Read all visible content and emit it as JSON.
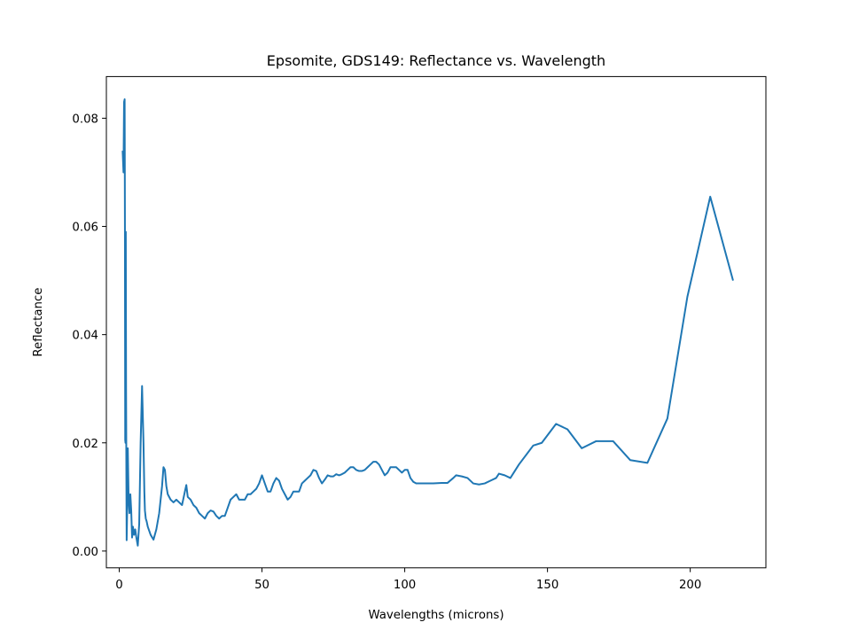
{
  "chart_data": {
    "type": "line",
    "title": "Epsomite, GDS149: Reflectance vs. Wavelength",
    "xlabel": "Wavelengths (microns)",
    "ylabel": "Reflectance",
    "xlim": [
      -4.5,
      226.5
    ],
    "ylim": [
      -0.0031,
      0.0877
    ],
    "xticks": [
      0,
      50,
      100,
      150,
      200
    ],
    "xtick_labels": [
      "0",
      "50",
      "100",
      "150",
      "200"
    ],
    "yticks": [
      0.0,
      0.02,
      0.04,
      0.06,
      0.08
    ],
    "ytick_labels": [
      "0.00",
      "0.02",
      "0.04",
      "0.06",
      "0.08"
    ],
    "grid": false,
    "legend": "none",
    "series": [
      {
        "color": "#1f77b4",
        "x": [
          1.2,
          1.5,
          1.7,
          1.9,
          2.0,
          2.1,
          2.2,
          2.3,
          2.4,
          2.5,
          2.6,
          2.8,
          3.0,
          3.3,
          3.6,
          3.9,
          4.2,
          4.5,
          4.8,
          5.2,
          5.6,
          6.0,
          6.5,
          7.0,
          7.5,
          8.0,
          8.5,
          8.8,
          9.0,
          9.3,
          9.6,
          10.0,
          11.0,
          12.0,
          13.0,
          14.0,
          15.0,
          15.5,
          16.0,
          16.5,
          17.0,
          18.0,
          19.0,
          20.0,
          21.0,
          22.0,
          23.0,
          23.5,
          24.0,
          25.0,
          26.0,
          27.0,
          28.0,
          29.0,
          30.0,
          31.0,
          32.0,
          33.0,
          34.0,
          35.0,
          36.0,
          37.0,
          38.0,
          39.0,
          40.0,
          41.0,
          42.0,
          43.0,
          44.0,
          45.0,
          46.0,
          47.0,
          48.0,
          49.0,
          50.0,
          51.0,
          52.0,
          53.0,
          54.0,
          55.0,
          56.0,
          57.0,
          58.0,
          59.0,
          60.0,
          61.0,
          62.0,
          63.0,
          64.0,
          65.0,
          66.0,
          67.0,
          68.0,
          69.0,
          70.0,
          71.0,
          72.0,
          73.0,
          74.0,
          75.0,
          76.0,
          77.0,
          78.0,
          79.0,
          80.0,
          81.0,
          82.0,
          83.0,
          84.0,
          85.0,
          86.0,
          87.0,
          88.0,
          89.0,
          90.0,
          91.0,
          92.0,
          93.0,
          94.0,
          95.0,
          96.0,
          97.0,
          98.0,
          99.0,
          100.0,
          101.0,
          102.0,
          103.0,
          104.0,
          105.0,
          107.0,
          110.0,
          113.0,
          115.0,
          117.0,
          118.0,
          120.0,
          122.0,
          124.0,
          126.0,
          128.0,
          130.0,
          132.0,
          133.0,
          135.0,
          137.0,
          140.0,
          145.0,
          148.0,
          153.0,
          157.0,
          162.0,
          167.0,
          173.0,
          179.0,
          185.0,
          192.0,
          199.0,
          207.0,
          215.0
        ],
        "y": [
          0.074,
          0.07,
          0.083,
          0.0835,
          0.06,
          0.0205,
          0.02,
          0.059,
          0.03,
          0.015,
          0.002,
          0.008,
          0.019,
          0.0095,
          0.007,
          0.0105,
          0.0075,
          0.0025,
          0.0045,
          0.003,
          0.004,
          0.0025,
          0.001,
          0.005,
          0.02,
          0.0305,
          0.02,
          0.011,
          0.0075,
          0.006,
          0.0055,
          0.0045,
          0.003,
          0.0021,
          0.004,
          0.007,
          0.012,
          0.0155,
          0.015,
          0.012,
          0.0105,
          0.0095,
          0.009,
          0.0095,
          0.009,
          0.0085,
          0.011,
          0.0122,
          0.01,
          0.0095,
          0.0085,
          0.008,
          0.007,
          0.0065,
          0.006,
          0.007,
          0.0075,
          0.0073,
          0.0065,
          0.006,
          0.0065,
          0.0065,
          0.008,
          0.0095,
          0.01,
          0.0105,
          0.0095,
          0.0095,
          0.0095,
          0.0105,
          0.0105,
          0.011,
          0.0115,
          0.0125,
          0.014,
          0.0125,
          0.011,
          0.011,
          0.0125,
          0.0135,
          0.013,
          0.0115,
          0.0105,
          0.0095,
          0.01,
          0.011,
          0.011,
          0.011,
          0.0125,
          0.013,
          0.0135,
          0.014,
          0.015,
          0.0148,
          0.0135,
          0.0125,
          0.0132,
          0.014,
          0.0138,
          0.0138,
          0.0142,
          0.014,
          0.0142,
          0.0145,
          0.015,
          0.0155,
          0.0155,
          0.015,
          0.0148,
          0.0148,
          0.015,
          0.0155,
          0.016,
          0.0165,
          0.0165,
          0.016,
          0.015,
          0.014,
          0.0145,
          0.0155,
          0.0155,
          0.0155,
          0.015,
          0.0145,
          0.015,
          0.015,
          0.0135,
          0.0128,
          0.0125,
          0.0125,
          0.0125,
          0.0125,
          0.0126,
          0.0126,
          0.0135,
          0.014,
          0.0138,
          0.0135,
          0.0125,
          0.0123,
          0.0125,
          0.013,
          0.0135,
          0.0143,
          0.014,
          0.0135,
          0.016,
          0.0195,
          0.02,
          0.0235,
          0.0225,
          0.019,
          0.0203,
          0.0203,
          0.0168,
          0.0163,
          0.0245,
          0.047,
          0.0655,
          0.05
        ]
      }
    ]
  }
}
